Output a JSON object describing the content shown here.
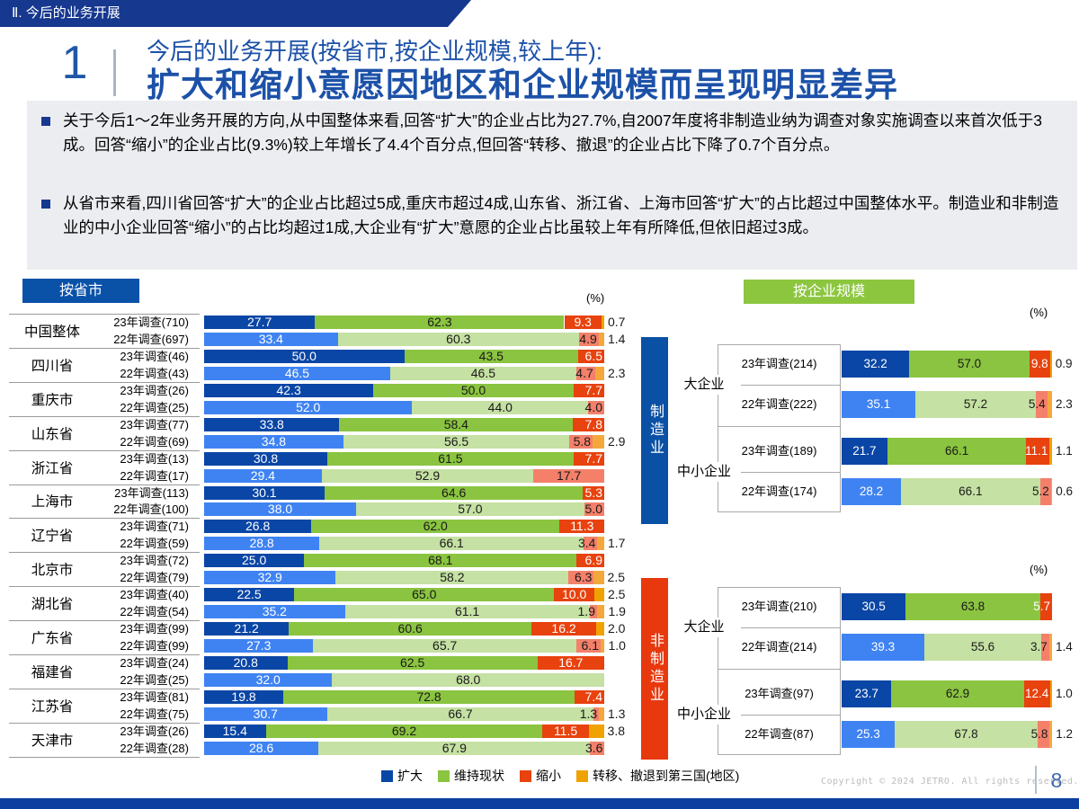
{
  "page": {
    "eyebrow": "Ⅱ. 今后的业务开展",
    "section_number": "1",
    "title_line1": "今后的业务开展(按省市,按企业规模,较上年):",
    "title_line2": "扩大和缩小意愿因地区和企业规模而呈现明显差异",
    "bullets": [
      "关于今后1〜2年业务开展的方向,从中国整体来看,回答“扩大”的企业占比为27.7%,自2007年度将非制造业纳为调查对象实施调查以来首次低于3成。回答“缩小”的企业占比(9.3%)较上年增长了4.4个百分点,但回答“转移、撤退”的企业占比下降了0.7个百分点。",
      "从省市来看,四川省回答“扩大”的企业占比超过5成,重庆市超过4成,山东省、浙江省、上海市回答“扩大”的占比超过中国整体水平。制造业和非制造业的中小企业回答“缩小”的占比均超过1成,大企业有“扩大”意愿的企业占比虽较上年有所降低,但依旧超过3成。"
    ],
    "footer": {
      "copyright": "Copyright © 2024 JETRO. All rights reserved.",
      "page_number": "8"
    }
  },
  "colors": {
    "y23": {
      "expand": "#0A46A6",
      "maintain": "#8AC440",
      "shrink": "#E8420E",
      "transfer": "#F0A202"
    },
    "y22": {
      "expand": "#3F83F2",
      "maintain": "#C5E1A3",
      "shrink": "#F4806A",
      "transfer": "#F4A83C"
    },
    "tab_blue": "#0A51A8",
    "tab_green": "#8CC63F",
    "mfg_bar": "#0A50A5",
    "nonmfg_bar": "#E8380D",
    "header_bar": "#16388F",
    "footer_bar": "#0C3FA0",
    "title_text": "#1C51A8"
  },
  "legend": [
    {
      "label": "扩大",
      "color": "#0A46A6"
    },
    {
      "label": "维持现状",
      "color": "#8AC440"
    },
    {
      "label": "缩小",
      "color": "#E8420E"
    },
    {
      "label": "转移、撤退到第三国(地区)",
      "color": "#F0A202"
    }
  ],
  "chart_data": [
    {
      "type": "bar",
      "stacked": true,
      "orientation": "horizontal",
      "title": "按省市",
      "unit": "(%)",
      "xlim": [
        0,
        100
      ],
      "grid": false,
      "series_labels": [
        "扩大",
        "维持现状",
        "缩小",
        "转移、撤退到第三国(地区)"
      ],
      "groups": [
        {
          "name": "中国整体",
          "rows": [
            {
              "label": "23年调查(710)",
              "year": "23",
              "values": [
                27.7,
                62.3,
                9.3,
                0.7
              ]
            },
            {
              "label": "22年调查(697)",
              "year": "22",
              "values": [
                33.4,
                60.3,
                4.9,
                1.4
              ]
            }
          ]
        },
        {
          "name": "四川省",
          "rows": [
            {
              "label": "23年调查(46)",
              "year": "23",
              "values": [
                50.0,
                43.5,
                6.5,
                null
              ]
            },
            {
              "label": "22年调查(43)",
              "year": "22",
              "values": [
                46.5,
                46.5,
                4.7,
                2.3
              ]
            }
          ]
        },
        {
          "name": "重庆市",
          "rows": [
            {
              "label": "23年调查(26)",
              "year": "23",
              "values": [
                42.3,
                50.0,
                7.7,
                null
              ]
            },
            {
              "label": "22年调查(25)",
              "year": "22",
              "values": [
                52.0,
                44.0,
                4.0,
                null
              ]
            }
          ]
        },
        {
          "name": "山东省",
          "rows": [
            {
              "label": "23年调查(77)",
              "year": "23",
              "values": [
                33.8,
                58.4,
                7.8,
                null
              ]
            },
            {
              "label": "22年调查(69)",
              "year": "22",
              "values": [
                34.8,
                56.5,
                5.8,
                2.9
              ]
            }
          ]
        },
        {
          "name": "浙江省",
          "rows": [
            {
              "label": "23年调查(13)",
              "year": "23",
              "values": [
                30.8,
                61.5,
                7.7,
                null
              ]
            },
            {
              "label": "22年调查(17)",
              "year": "22",
              "values": [
                29.4,
                52.9,
                17.7,
                null
              ]
            }
          ]
        },
        {
          "name": "上海市",
          "rows": [
            {
              "label": "23年调查(113)",
              "year": "23",
              "values": [
                30.1,
                64.6,
                5.3,
                null
              ]
            },
            {
              "label": "22年调查(100)",
              "year": "22",
              "values": [
                38.0,
                57.0,
                5.0,
                null
              ]
            }
          ]
        },
        {
          "name": "辽宁省",
          "rows": [
            {
              "label": "23年调查(71)",
              "year": "23",
              "values": [
                26.8,
                62.0,
                11.3,
                null
              ]
            },
            {
              "label": "22年调查(59)",
              "year": "22",
              "values": [
                28.8,
                66.1,
                3.4,
                1.7
              ]
            }
          ]
        },
        {
          "name": "北京市",
          "rows": [
            {
              "label": "23年调查(72)",
              "year": "23",
              "values": [
                25.0,
                68.1,
                6.9,
                null
              ]
            },
            {
              "label": "22年调查(79)",
              "year": "22",
              "values": [
                32.9,
                58.2,
                6.3,
                2.5
              ]
            }
          ]
        },
        {
          "name": "湖北省",
          "rows": [
            {
              "label": "23年调查(40)",
              "year": "23",
              "values": [
                22.5,
                65.0,
                10.0,
                2.5
              ]
            },
            {
              "label": "22年调查(54)",
              "year": "22",
              "values": [
                35.2,
                61.1,
                1.9,
                1.9
              ]
            }
          ]
        },
        {
          "name": "广东省",
          "rows": [
            {
              "label": "23年调查(99)",
              "year": "23",
              "values": [
                21.2,
                60.6,
                16.2,
                2.0
              ]
            },
            {
              "label": "22年调查(99)",
              "year": "22",
              "values": [
                27.3,
                65.7,
                6.1,
                1.0
              ]
            }
          ]
        },
        {
          "name": "福建省",
          "rows": [
            {
              "label": "23年调查(24)",
              "year": "23",
              "values": [
                20.8,
                62.5,
                16.7,
                null
              ]
            },
            {
              "label": "22年调查(25)",
              "year": "22",
              "values": [
                32.0,
                68.0,
                null,
                null
              ]
            }
          ]
        },
        {
          "name": "江苏省",
          "rows": [
            {
              "label": "23年调查(81)",
              "year": "23",
              "values": [
                19.8,
                72.8,
                7.4,
                null
              ]
            },
            {
              "label": "22年调查(75)",
              "year": "22",
              "values": [
                30.7,
                66.7,
                1.3,
                1.3
              ]
            }
          ]
        },
        {
          "name": "天津市",
          "rows": [
            {
              "label": "23年调查(26)",
              "year": "23",
              "values": [
                15.4,
                69.2,
                11.5,
                3.8
              ]
            },
            {
              "label": "22年调查(28)",
              "year": "22",
              "values": [
                28.6,
                67.9,
                3.6,
                null
              ]
            }
          ]
        }
      ]
    },
    {
      "type": "bar",
      "stacked": true,
      "orientation": "horizontal",
      "title": "按企业规模",
      "unit": "(%)",
      "xlim": [
        0,
        100
      ],
      "grid": false,
      "series_labels": [
        "扩大",
        "维持现状",
        "缩小",
        "转移、撤退到第三国(地区)"
      ],
      "sections": [
        {
          "name": "制造业",
          "groups": [
            {
              "name": "大企业",
              "rows": [
                {
                  "label": "23年调查(214)",
                  "year": "23",
                  "values": [
                    32.2,
                    57.0,
                    9.8,
                    0.9
                  ]
                },
                {
                  "label": "22年调查(222)",
                  "year": "22",
                  "values": [
                    35.1,
                    57.2,
                    5.4,
                    2.3
                  ]
                }
              ]
            },
            {
              "name": "中小企业",
              "rows": [
                {
                  "label": "23年调查(189)",
                  "year": "23",
                  "values": [
                    21.7,
                    66.1,
                    11.1,
                    1.1
                  ]
                },
                {
                  "label": "22年调查(174)",
                  "year": "22",
                  "values": [
                    28.2,
                    66.1,
                    5.2,
                    0.6
                  ]
                }
              ]
            }
          ]
        },
        {
          "name": "非制造业",
          "groups": [
            {
              "name": "大企业",
              "rows": [
                {
                  "label": "23年调查(210)",
                  "year": "23",
                  "values": [
                    30.5,
                    63.8,
                    5.7,
                    null
                  ]
                },
                {
                  "label": "22年调查(214)",
                  "year": "22",
                  "values": [
                    39.3,
                    55.6,
                    3.7,
                    1.4
                  ]
                }
              ]
            },
            {
              "name": "中小企业",
              "rows": [
                {
                  "label": "23年调查(97)",
                  "year": "23",
                  "values": [
                    23.7,
                    62.9,
                    12.4,
                    1.0
                  ]
                },
                {
                  "label": "22年调查(87)",
                  "year": "22",
                  "values": [
                    25.3,
                    67.8,
                    5.8,
                    1.2
                  ]
                }
              ]
            }
          ]
        }
      ]
    }
  ]
}
